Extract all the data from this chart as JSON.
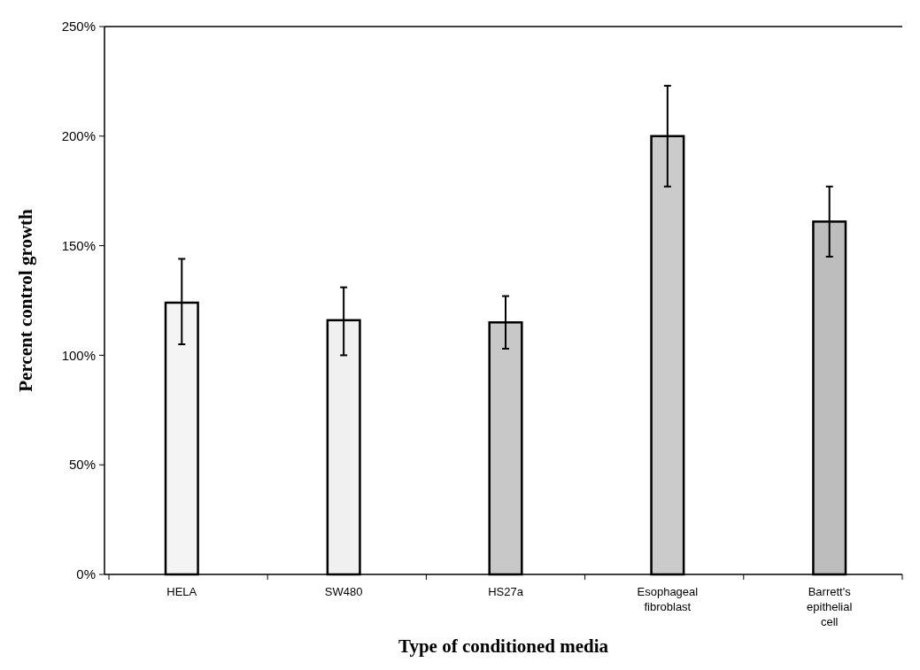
{
  "chart_data": {
    "type": "bar",
    "xlabel": "Type of conditioned media",
    "ylabel": "Percent control growth",
    "categories": [
      "HELA",
      "SW480",
      "HS27a",
      "Esophageal fibroblast",
      "Barrett's epithelial cell"
    ],
    "values": [
      124,
      116,
      115,
      200,
      161
    ],
    "errors": [
      [
        105,
        144
      ],
      [
        100,
        131
      ],
      [
        103,
        127
      ],
      [
        177,
        223
      ],
      [
        145,
        177
      ]
    ],
    "colors": [
      "#f4f4f4",
      "#f0f0f0",
      "#c8c8c8",
      "#cbcbcb",
      "#bdbdbd"
    ],
    "ylim": [
      0,
      250
    ],
    "yticks": [
      {
        "value": 0,
        "label": "0%"
      },
      {
        "value": 50,
        "label": "50%"
      },
      {
        "value": 100,
        "label": "100%"
      },
      {
        "value": 150,
        "label": "150%"
      },
      {
        "value": 200,
        "label": "200%"
      },
      {
        "value": 250,
        "label": "250%"
      }
    ],
    "grid": false
  }
}
